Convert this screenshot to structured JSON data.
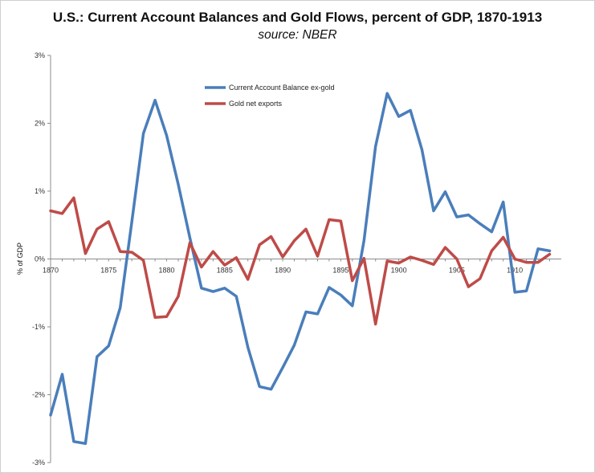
{
  "chart_data": {
    "type": "line",
    "title": "U.S.: Current Account Balances and Gold Flows, percent of GDP, 1870-1913",
    "subtitle": "source: NBER",
    "xlabel": "",
    "ylabel": "% of GDP",
    "x": [
      1870,
      1871,
      1872,
      1873,
      1874,
      1875,
      1876,
      1877,
      1878,
      1879,
      1880,
      1881,
      1882,
      1883,
      1884,
      1885,
      1886,
      1887,
      1888,
      1889,
      1890,
      1891,
      1892,
      1893,
      1894,
      1895,
      1896,
      1897,
      1898,
      1899,
      1900,
      1901,
      1902,
      1903,
      1904,
      1905,
      1906,
      1907,
      1908,
      1909,
      1910,
      1911,
      1912,
      1913
    ],
    "xticks": [
      "1870",
      "1875",
      "1880",
      "1885",
      "1890",
      "1895",
      "1900",
      "1905",
      "1910"
    ],
    "yticks": [
      "3%",
      "2%",
      "1%",
      "0%",
      "-1%",
      "-2%",
      "-3%"
    ],
    "ylim": [
      -3,
      3
    ],
    "grid": false,
    "legend_position": "top-center",
    "series": [
      {
        "name": "Current Account Balance ex-gold",
        "color": "#4a7ebb",
        "values": [
          -2.3,
          -1.7,
          -2.69,
          -2.72,
          -1.44,
          -1.28,
          -0.72,
          0.55,
          1.85,
          2.34,
          1.82,
          1.1,
          0.31,
          -0.43,
          -0.48,
          -0.43,
          -0.55,
          -1.3,
          -1.88,
          -1.92,
          -1.6,
          -1.27,
          -0.78,
          -0.81,
          -0.42,
          -0.53,
          -0.69,
          0.27,
          1.66,
          2.44,
          2.1,
          2.19,
          1.61,
          0.71,
          0.99,
          0.62,
          0.65,
          0.52,
          0.4,
          0.84,
          -0.49,
          -0.47,
          0.15,
          0.12
        ]
      },
      {
        "name": "Gold net exports",
        "color": "#be4b48",
        "values": [
          0.71,
          0.67,
          0.9,
          0.08,
          0.44,
          0.55,
          0.11,
          0.1,
          -0.02,
          -0.86,
          -0.85,
          -0.55,
          0.24,
          -0.12,
          0.11,
          -0.09,
          0.02,
          -0.3,
          0.21,
          0.33,
          0.03,
          0.27,
          0.44,
          0.04,
          0.58,
          0.56,
          -0.32,
          0.01,
          -0.96,
          -0.03,
          -0.06,
          0.03,
          -0.02,
          -0.08,
          0.17,
          0.0,
          -0.41,
          -0.29,
          0.12,
          0.32,
          0.0,
          -0.05,
          -0.05,
          0.07
        ]
      }
    ]
  }
}
